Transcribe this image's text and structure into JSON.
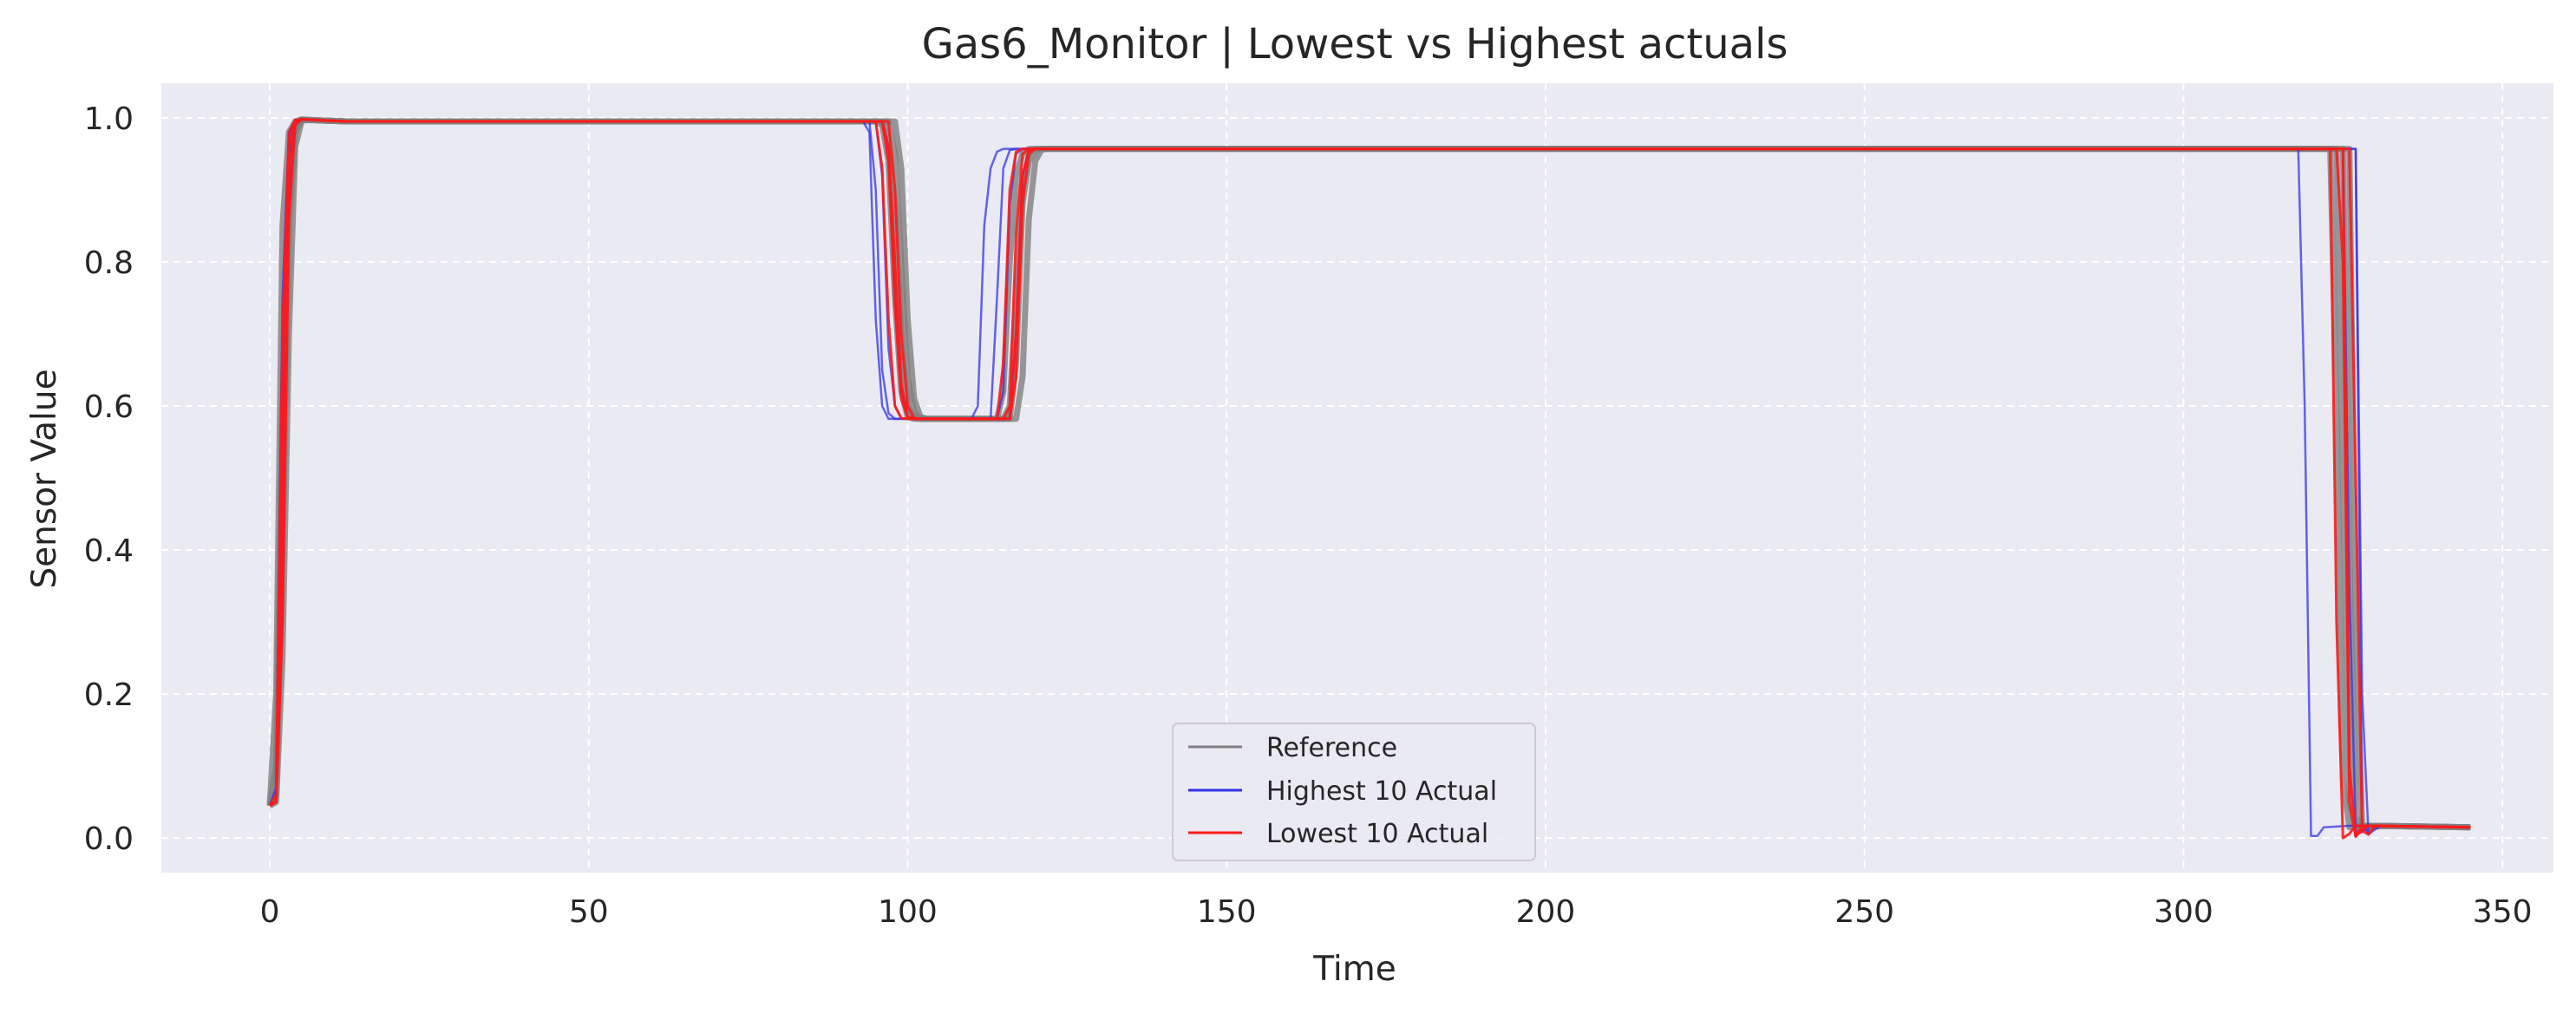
{
  "chart_data": {
    "type": "line",
    "title": "Gas6_Monitor | Lowest vs Highest actuals",
    "xlabel": "Time",
    "ylabel": "Sensor Value",
    "xlim": [
      -17,
      358
    ],
    "ylim": [
      -0.048,
      1.048
    ],
    "xticks": [
      0,
      50,
      100,
      150,
      200,
      250,
      300,
      350
    ],
    "yticks": [
      0.0,
      0.2,
      0.4,
      0.6,
      0.8,
      1.0
    ],
    "xtick_labels": [
      "0",
      "50",
      "100",
      "150",
      "200",
      "250",
      "300",
      "350"
    ],
    "ytick_labels": [
      "0.0",
      "0.2",
      "0.4",
      "0.6",
      "0.8",
      "1.0"
    ],
    "grid": true,
    "legend_position": "lower center",
    "legend": [
      {
        "label": "Reference",
        "color": "#808080"
      },
      {
        "label": "Highest 10 Actual",
        "color": "#3333e6"
      },
      {
        "label": "Lowest 10 Actual",
        "color": "#ff1a1a"
      }
    ],
    "colors": {
      "background": "#eaeaf2",
      "grid": "#ffffff",
      "reference": "#808080",
      "highest": "#3333e6",
      "lowest": "#ff1a1a"
    },
    "series": [
      {
        "name": "Reference",
        "group": "reference",
        "x": [
          0,
          1,
          2,
          3,
          4,
          5,
          6,
          12,
          95,
          96,
          97,
          98,
          99,
          100,
          101,
          114,
          115,
          116,
          117,
          118,
          119,
          120,
          323,
          324,
          325,
          326,
          328,
          345
        ],
        "y": [
          0.045,
          0.2,
          0.85,
          0.98,
          0.995,
          0.998,
          0.997,
          0.995,
          0.995,
          0.99,
          0.94,
          0.75,
          0.62,
          0.585,
          0.582,
          0.582,
          0.62,
          0.8,
          0.92,
          0.95,
          0.957,
          0.957,
          0.957,
          0.6,
          0.08,
          0.015,
          0.017,
          0.015
        ]
      },
      {
        "name": "Reference",
        "group": "reference",
        "x": [
          0,
          1,
          2,
          3,
          4,
          5,
          6,
          12,
          96,
          97,
          98,
          99,
          100,
          101,
          102,
          115,
          116,
          117,
          118,
          119,
          120,
          121,
          324,
          325,
          326,
          327,
          329,
          345
        ],
        "y": [
          0.045,
          0.1,
          0.6,
          0.92,
          0.99,
          0.997,
          0.997,
          0.995,
          0.995,
          0.97,
          0.88,
          0.7,
          0.6,
          0.584,
          0.582,
          0.582,
          0.6,
          0.75,
          0.9,
          0.95,
          0.957,
          0.957,
          0.957,
          0.5,
          0.05,
          0.014,
          0.017,
          0.015
        ]
      },
      {
        "name": "Reference",
        "group": "reference",
        "x": [
          0,
          1,
          2,
          3,
          4,
          5,
          6,
          12,
          97,
          98,
          99,
          100,
          101,
          102,
          103,
          116,
          117,
          118,
          119,
          120,
          121,
          122,
          325,
          326,
          327,
          328,
          330,
          345
        ],
        "y": [
          0.045,
          0.06,
          0.4,
          0.85,
          0.98,
          0.997,
          0.997,
          0.995,
          0.995,
          0.95,
          0.8,
          0.64,
          0.59,
          0.583,
          0.582,
          0.582,
          0.66,
          0.88,
          0.94,
          0.955,
          0.957,
          0.957,
          0.957,
          0.4,
          0.03,
          0.013,
          0.017,
          0.015
        ]
      },
      {
        "name": "Reference",
        "group": "reference",
        "x": [
          0,
          1,
          2,
          3,
          4,
          5,
          6,
          12,
          98,
          99,
          100,
          101,
          102,
          103,
          104,
          117,
          118,
          119,
          120,
          121,
          122,
          123,
          326,
          327,
          328,
          329,
          331,
          345
        ],
        "y": [
          0.045,
          0.05,
          0.25,
          0.7,
          0.96,
          0.996,
          0.997,
          0.995,
          0.995,
          0.93,
          0.72,
          0.61,
          0.585,
          0.582,
          0.582,
          0.582,
          0.64,
          0.86,
          0.94,
          0.956,
          0.957,
          0.957,
          0.957,
          0.3,
          0.02,
          0.013,
          0.017,
          0.015
        ]
      },
      {
        "name": "Highest 10 Actual",
        "group": "highest",
        "x": [
          0,
          1,
          2,
          3,
          4,
          5,
          7,
          12,
          93,
          94,
          95,
          96,
          97,
          98,
          110,
          111,
          112,
          113,
          114,
          115,
          116,
          318,
          319,
          320,
          321,
          322,
          326,
          345
        ],
        "y": [
          0.045,
          0.05,
          0.6,
          0.97,
          0.997,
          0.998,
          0.997,
          0.995,
          0.995,
          0.98,
          0.72,
          0.6,
          0.582,
          0.582,
          0.582,
          0.6,
          0.85,
          0.93,
          0.953,
          0.957,
          0.957,
          0.957,
          0.6,
          0.003,
          0.003,
          0.015,
          0.017,
          0.015
        ]
      },
      {
        "name": "Highest 10 Actual",
        "group": "highest",
        "x": [
          0,
          1,
          2,
          3,
          4,
          5,
          7,
          12,
          94,
          95,
          96,
          97,
          98,
          99,
          113,
          114,
          115,
          116,
          117,
          118,
          326,
          327,
          328,
          329,
          330,
          345
        ],
        "y": [
          0.045,
          0.07,
          0.75,
          0.98,
          0.997,
          0.998,
          0.997,
          0.995,
          0.995,
          0.9,
          0.65,
          0.59,
          0.582,
          0.582,
          0.582,
          0.75,
          0.93,
          0.955,
          0.957,
          0.957,
          0.957,
          0.957,
          0.02,
          0.005,
          0.017,
          0.015
        ]
      },
      {
        "name": "Highest 10 Actual",
        "group": "highest",
        "x": [
          0,
          1,
          2,
          3,
          4,
          5,
          7,
          12,
          95,
          96,
          97,
          98,
          99,
          100,
          114,
          115,
          116,
          117,
          118,
          119,
          327,
          328,
          329,
          330,
          331,
          345
        ],
        "y": [
          0.045,
          0.05,
          0.45,
          0.94,
          0.995,
          0.998,
          0.997,
          0.995,
          0.995,
          0.92,
          0.68,
          0.6,
          0.583,
          0.582,
          0.582,
          0.62,
          0.88,
          0.95,
          0.957,
          0.957,
          0.957,
          0.2,
          0.005,
          0.012,
          0.017,
          0.015
        ]
      },
      {
        "name": "Highest 10 Actual",
        "group": "highest",
        "x": [
          0,
          1,
          2,
          3,
          4,
          5,
          7,
          12,
          96,
          97,
          98,
          99,
          100,
          101,
          115,
          116,
          117,
          118,
          119,
          120,
          325,
          326,
          327,
          328,
          329,
          345
        ],
        "y": [
          0.045,
          0.05,
          0.3,
          0.88,
          0.99,
          0.998,
          0.997,
          0.995,
          0.995,
          0.96,
          0.75,
          0.62,
          0.584,
          0.582,
          0.582,
          0.582,
          0.7,
          0.92,
          0.955,
          0.957,
          0.957,
          0.35,
          0.01,
          0.008,
          0.017,
          0.015
        ]
      },
      {
        "name": "Lowest 10 Actual",
        "group": "lowest",
        "x": [
          0,
          1,
          2,
          3,
          4,
          5,
          7,
          12,
          95,
          96,
          97,
          98,
          99,
          100,
          114,
          115,
          116,
          117,
          118,
          119,
          323,
          324,
          325,
          326,
          327,
          345
        ],
        "y": [
          0.045,
          0.05,
          0.55,
          0.96,
          0.996,
          0.998,
          0.997,
          0.995,
          0.995,
          0.93,
          0.72,
          0.6,
          0.583,
          0.582,
          0.582,
          0.66,
          0.9,
          0.953,
          0.957,
          0.957,
          0.957,
          0.3,
          0.0,
          0.006,
          0.017,
          0.015
        ]
      },
      {
        "name": "Lowest 10 Actual",
        "group": "lowest",
        "x": [
          0,
          1,
          2,
          3,
          4,
          5,
          7,
          12,
          96,
          97,
          98,
          99,
          100,
          101,
          115,
          116,
          117,
          118,
          119,
          120,
          324,
          325,
          326,
          327,
          328,
          345
        ],
        "y": [
          0.045,
          0.06,
          0.7,
          0.98,
          0.997,
          0.998,
          0.997,
          0.995,
          0.995,
          0.96,
          0.8,
          0.63,
          0.585,
          0.582,
          0.582,
          0.6,
          0.84,
          0.95,
          0.957,
          0.957,
          0.957,
          0.8,
          0.05,
          0.002,
          0.017,
          0.015
        ]
      },
      {
        "name": "Lowest 10 Actual",
        "group": "lowest",
        "x": [
          0,
          1,
          2,
          3,
          4,
          5,
          7,
          12,
          97,
          98,
          99,
          100,
          101,
          102,
          116,
          117,
          118,
          119,
          120,
          121,
          325,
          326,
          327,
          328,
          329,
          345
        ],
        "y": [
          0.045,
          0.05,
          0.4,
          0.92,
          0.995,
          0.998,
          0.997,
          0.995,
          0.995,
          0.9,
          0.7,
          0.6,
          0.583,
          0.582,
          0.582,
          0.7,
          0.92,
          0.955,
          0.957,
          0.957,
          0.957,
          0.1,
          0.003,
          0.01,
          0.017,
          0.015
        ]
      },
      {
        "name": "Lowest 10 Actual",
        "group": "lowest",
        "x": [
          0,
          1,
          2,
          3,
          4,
          5,
          7,
          12,
          96,
          97,
          98,
          99,
          100,
          101,
          116,
          117,
          118,
          119,
          120,
          121,
          326,
          327,
          328,
          329,
          330,
          345
        ],
        "y": [
          0.045,
          0.05,
          0.3,
          0.86,
          0.99,
          0.998,
          0.997,
          0.995,
          0.995,
          0.94,
          0.74,
          0.61,
          0.584,
          0.582,
          0.582,
          0.64,
          0.88,
          0.95,
          0.957,
          0.957,
          0.957,
          0.5,
          0.01,
          0.005,
          0.017,
          0.015
        ]
      }
    ]
  }
}
